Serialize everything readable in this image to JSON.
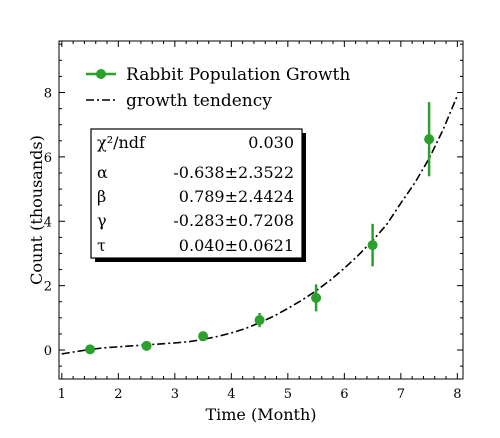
{
  "chart_data": {
    "type": "scatter",
    "xlabel": "Time (Month)",
    "ylabel": "Count (thousands)",
    "xlim": [
      0.95,
      8.1
    ],
    "ylim": [
      -0.9,
      9.6
    ],
    "x_ticks": [
      1,
      2,
      3,
      4,
      5,
      6,
      7,
      8
    ],
    "y_ticks": [
      0,
      2,
      4,
      6,
      8
    ],
    "grid": false,
    "legend_placement": "top-left",
    "series": [
      {
        "name": "Rabbit Population Growth",
        "type": "errorbar",
        "color": "#2ca02c",
        "x": [
          1.5,
          2.5,
          3.5,
          4.5,
          5.5,
          6.5,
          7.5
        ],
        "y": [
          0.02,
          0.13,
          0.43,
          0.93,
          1.62,
          3.26,
          6.55
        ],
        "yerr": [
          0.05,
          0.08,
          0.1,
          0.22,
          0.42,
          0.66,
          1.15
        ]
      },
      {
        "name": "growth tendency",
        "type": "line",
        "style": "dashdot",
        "color": "#000000",
        "x": [
          1.0,
          1.25,
          1.5,
          1.75,
          2.0,
          2.25,
          2.5,
          2.75,
          3.0,
          3.25,
          3.5,
          3.75,
          4.0,
          4.25,
          4.5,
          4.75,
          5.0,
          5.25,
          5.5,
          5.75,
          6.0,
          6.25,
          6.5,
          6.75,
          7.0,
          7.25,
          7.5,
          7.75,
          8.0
        ],
        "y": [
          -0.12,
          -0.05,
          0.02,
          0.07,
          0.1,
          0.13,
          0.16,
          0.19,
          0.22,
          0.26,
          0.33,
          0.42,
          0.53,
          0.67,
          0.85,
          1.05,
          1.29,
          1.55,
          1.84,
          2.17,
          2.54,
          2.95,
          3.4,
          3.9,
          4.56,
          5.2,
          5.95,
          6.85,
          7.9
        ]
      }
    ],
    "fit_box": {
      "rows": [
        {
          "label": "χ²/ndf",
          "value": "0.030"
        },
        {
          "label": "α",
          "value": "-0.638±2.3522"
        },
        {
          "label": "β",
          "value": "0.789±2.4424"
        },
        {
          "label": "γ",
          "value": "-0.283±0.7208"
        },
        {
          "label": "τ",
          "value": "0.040±0.0621"
        }
      ]
    }
  }
}
